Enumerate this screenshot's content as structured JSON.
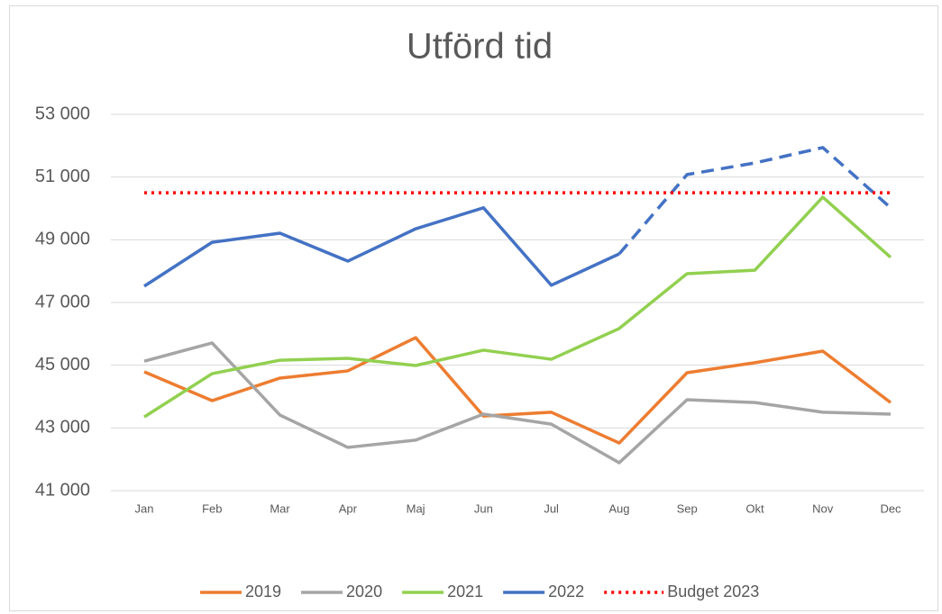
{
  "chart_data": {
    "type": "line",
    "title": "Utförd tid",
    "categories": [
      "Jan",
      "Feb",
      "Mar",
      "Apr",
      "Maj",
      "Jun",
      "Jul",
      "Aug",
      "Sep",
      "Okt",
      "Nov",
      "Dec"
    ],
    "series": [
      {
        "name": "2019",
        "color": "#ed7d31",
        "values": [
          44790,
          43870,
          44590,
          44820,
          45880,
          43380,
          43500,
          42520,
          44760,
          45080,
          45450,
          43810
        ]
      },
      {
        "name": "2020",
        "color": "#a5a5a5",
        "values": [
          45130,
          45710,
          43410,
          42380,
          42610,
          43440,
          43120,
          41890,
          43900,
          43810,
          43500,
          43440
        ]
      },
      {
        "name": "2021",
        "color": "#92d050",
        "values": [
          43350,
          44730,
          45160,
          45220,
          44990,
          45480,
          45190,
          46170,
          47920,
          48030,
          50360,
          48440
        ]
      },
      {
        "name": "2022",
        "color": "#4472c4",
        "dashed_from": "Aug",
        "values": [
          47520,
          48920,
          49210,
          48320,
          49350,
          50020,
          47550,
          48550,
          51080,
          51450,
          51940,
          50020
        ]
      },
      {
        "name": "Budget 2023",
        "color": "#ff0000",
        "style": "dotted",
        "values": [
          50500,
          50500,
          50500,
          50500,
          50500,
          50500,
          50500,
          50500,
          50500,
          50500,
          50500,
          50500
        ]
      }
    ],
    "ylim": [
      41000,
      53000
    ],
    "yticks": [
      {
        "value": 41000,
        "label": "41 000"
      },
      {
        "value": 43000,
        "label": "43 000"
      },
      {
        "value": 45000,
        "label": "45 000"
      },
      {
        "value": 47000,
        "label": "47 000"
      },
      {
        "value": 49000,
        "label": "49 000"
      },
      {
        "value": 51000,
        "label": "51 000"
      },
      {
        "value": 53000,
        "label": "53 000"
      }
    ],
    "grid": true,
    "legend": "bottom"
  }
}
